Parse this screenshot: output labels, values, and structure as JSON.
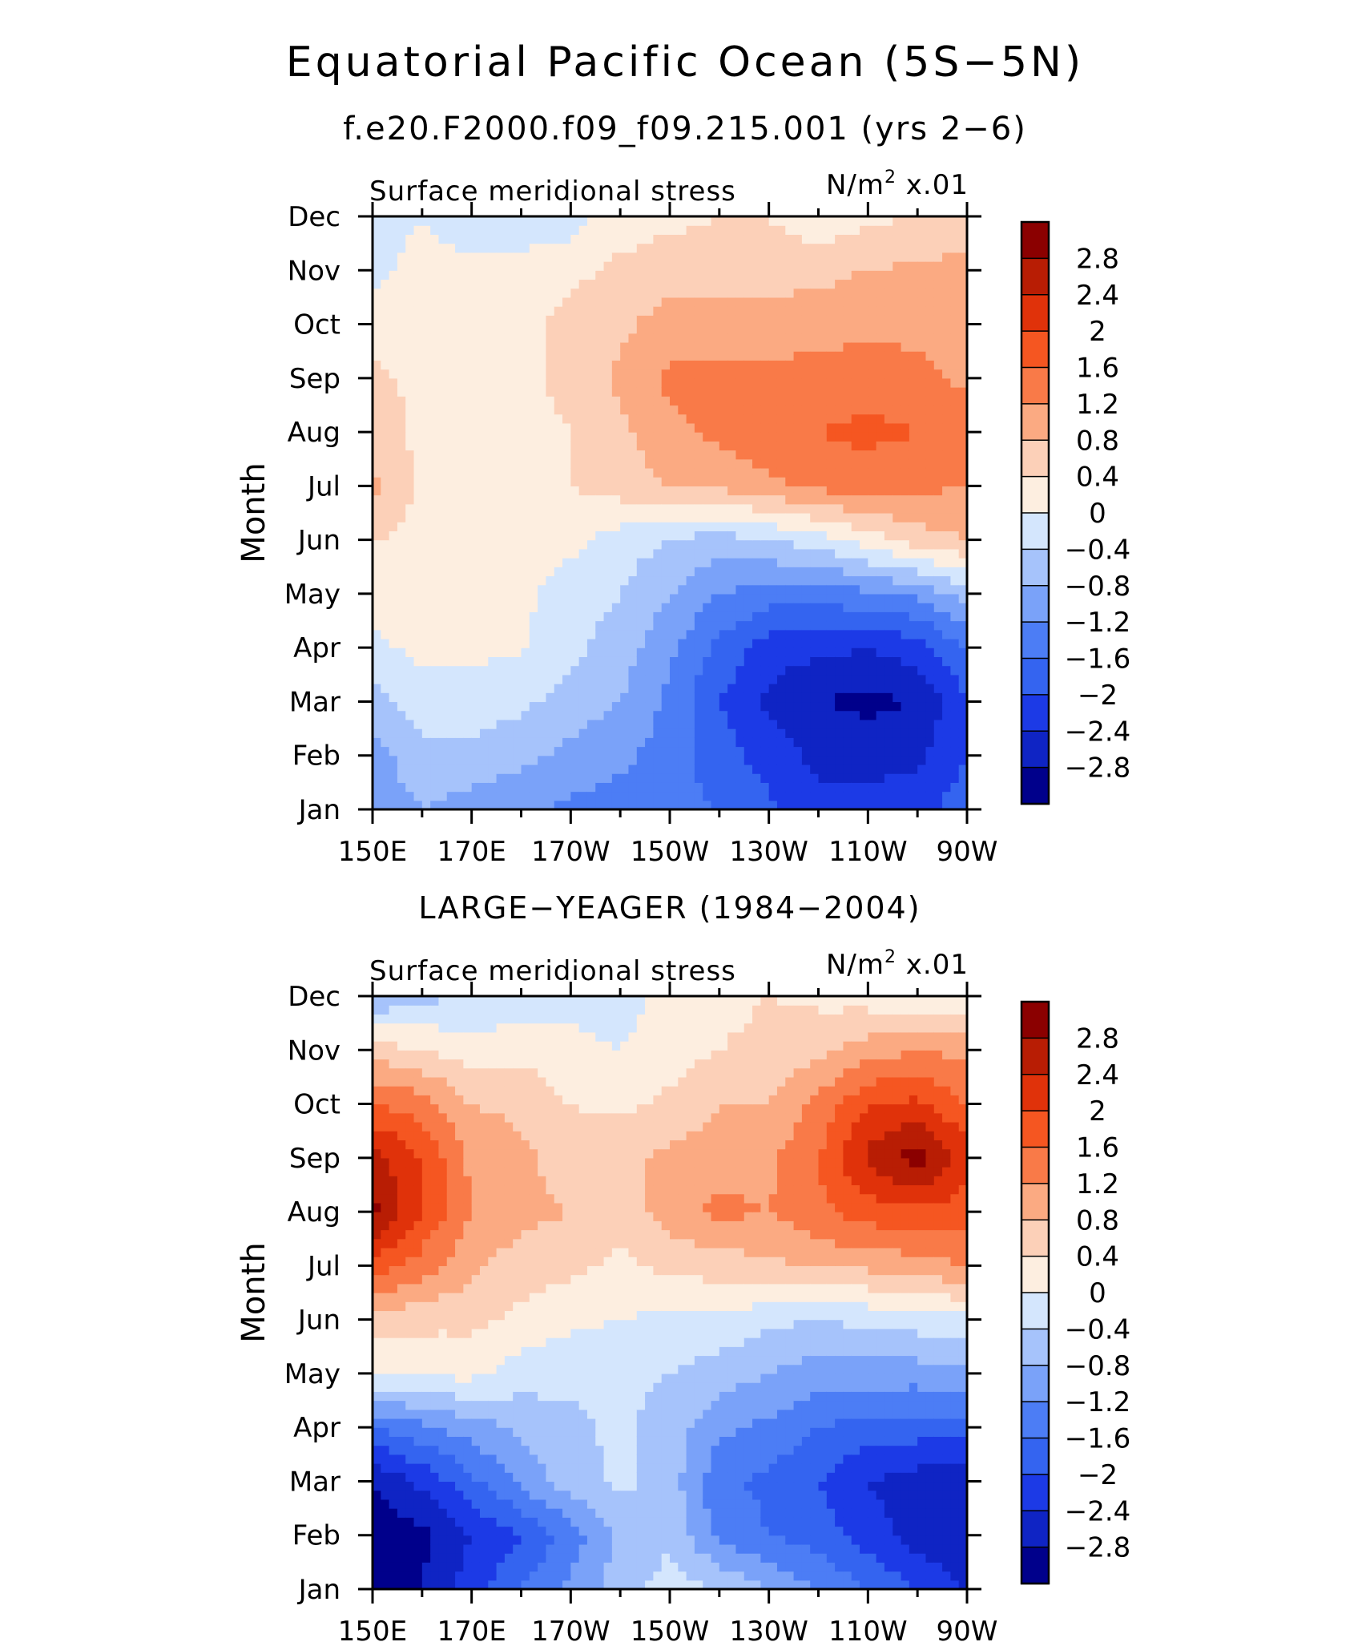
{
  "title": "Equatorial Pacific Ocean (5S−5N)",
  "subtitle": "f.e20.F2000.f09_f09.215.001 (yrs 2−6)",
  "palette": [
    "#00008b",
    "#0f24c4",
    "#1c3ae6",
    "#3464f0",
    "#4c7df5",
    "#7aa2f9",
    "#a6c3fb",
    "#d4e6fd",
    "#fdeee0",
    "#fcd0b8",
    "#fbaa82",
    "#f97a48",
    "#f55621",
    "#e0320a",
    "#b81d04",
    "#8b0000"
  ],
  "levels": [
    -2.8,
    -2.4,
    -2.0,
    -1.6,
    -1.2,
    -0.8,
    -0.4,
    0.0,
    0.4,
    0.8,
    1.2,
    1.6,
    2.0,
    2.4,
    2.8
  ],
  "legend_labels": [
    "2.8",
    "2.4",
    "2",
    "1.6",
    "1.2",
    "0.8",
    "0.4",
    "0",
    "−0.4",
    "−0.8",
    "−1.2",
    "−1.6",
    "−2",
    "−2.4",
    "−2.8"
  ],
  "chart_data": [
    {
      "type": "heatmap",
      "title": "",
      "left_label": "Surface meridional stress",
      "right_label": "N/m",
      "right_label_sup": "2",
      "right_label_tail": " x.01",
      "ylabel": "Month",
      "xlabel": "",
      "x_ticks": [
        "150E",
        "170E",
        "170W",
        "150W",
        "130W",
        "110W",
        "90W"
      ],
      "y_ticks": [
        "Jan",
        "Feb",
        "Mar",
        "Apr",
        "May",
        "Jun",
        "Jul",
        "Aug",
        "Sep",
        "Oct",
        "Nov",
        "Dec"
      ],
      "x_lon": [
        150,
        160,
        170,
        180,
        190,
        200,
        210,
        220,
        230,
        240,
        250,
        260,
        270
      ],
      "values": [
        [
          -1.1,
          -0.8,
          -1.0,
          -1.1,
          -1.3,
          -1.4,
          -1.5,
          -1.6,
          -1.9,
          -2.3,
          -2.2,
          -2.1,
          -1.8
        ],
        [
          -1.0,
          -0.5,
          -0.5,
          -0.7,
          -0.9,
          -1.1,
          -1.4,
          -1.8,
          -2.2,
          -2.5,
          -2.6,
          -2.5,
          -2.0
        ],
        [
          -0.6,
          -0.2,
          -0.2,
          -0.3,
          -0.6,
          -0.8,
          -1.3,
          -2.0,
          -2.5,
          -2.8,
          -2.9,
          -2.8,
          -2.0
        ],
        [
          -0.1,
          0.1,
          0.1,
          0.05,
          -0.3,
          -0.6,
          -1.1,
          -1.7,
          -2.2,
          -2.3,
          -2.4,
          -2.2,
          -1.6
        ],
        [
          0.2,
          0.2,
          0.2,
          0.1,
          -0.2,
          -0.4,
          -0.8,
          -1.2,
          -1.4,
          -1.4,
          -1.3,
          -1.1,
          -0.6
        ],
        [
          0.4,
          0.3,
          0.2,
          0.2,
          0.1,
          -0.2,
          -0.4,
          -0.6,
          -0.4,
          -0.2,
          0.2,
          0.6,
          0.8
        ],
        [
          0.9,
          0.3,
          0.2,
          0.3,
          0.4,
          0.6,
          0.8,
          0.9,
          1.1,
          1.3,
          1.4,
          1.3,
          1.2
        ],
        [
          0.6,
          0.3,
          0.2,
          0.3,
          0.4,
          0.7,
          1.1,
          1.3,
          1.5,
          1.6,
          1.7,
          1.6,
          1.5
        ],
        [
          0.5,
          0.3,
          0.2,
          0.3,
          0.5,
          0.9,
          1.3,
          1.3,
          1.3,
          1.4,
          1.4,
          1.3,
          1.1
        ],
        [
          0.2,
          0.2,
          0.2,
          0.3,
          0.5,
          0.7,
          1.0,
          1.0,
          1.0,
          1.0,
          1.1,
          1.1,
          1.0
        ],
        [
          -0.1,
          0.1,
          0.1,
          0.2,
          0.3,
          0.5,
          0.6,
          0.6,
          0.6,
          0.7,
          0.8,
          0.9,
          0.9
        ],
        [
          -0.1,
          0.0,
          -0.2,
          -0.3,
          -0.2,
          0.2,
          0.3,
          0.4,
          0.4,
          0.1,
          0.3,
          0.4,
          0.6
        ]
      ]
    },
    {
      "type": "heatmap",
      "title": "LARGE−YEAGER (1984−2004)",
      "left_label": "Surface meridional stress",
      "right_label": "N/m",
      "right_label_sup": "2",
      "right_label_tail": " x.01",
      "ylabel": "Month",
      "xlabel": "",
      "x_ticks": [
        "150E",
        "170E",
        "170W",
        "150W",
        "130W",
        "110W",
        "90W"
      ],
      "y_ticks": [
        "Jan",
        "Feb",
        "Mar",
        "Apr",
        "May",
        "Jun",
        "Jul",
        "Aug",
        "Sep",
        "Oct",
        "Nov",
        "Dec"
      ],
      "x_lon": [
        150,
        160,
        170,
        180,
        190,
        200,
        210,
        220,
        230,
        240,
        250,
        260,
        270
      ],
      "values": [
        [
          -3.0,
          -2.8,
          -2.2,
          -1.6,
          -1.1,
          -0.6,
          -0.2,
          -0.4,
          -0.8,
          -1.2,
          -1.6,
          -2.0,
          -2.4
        ],
        [
          -3.1,
          -2.9,
          -2.4,
          -2.0,
          -1.4,
          -0.7,
          -0.5,
          -1.3,
          -1.6,
          -1.8,
          -2.2,
          -2.6,
          -2.8
        ],
        [
          -2.8,
          -2.3,
          -1.7,
          -1.1,
          -0.6,
          -0.3,
          -0.6,
          -1.5,
          -1.7,
          -2.0,
          -2.4,
          -2.6,
          -2.7
        ],
        [
          -1.6,
          -1.3,
          -1.0,
          -0.7,
          -0.5,
          -0.3,
          -0.6,
          -1.1,
          -1.3,
          -1.6,
          -1.8,
          -1.8,
          -1.8
        ],
        [
          0.0,
          0.1,
          0.1,
          -0.2,
          -0.3,
          -0.3,
          -0.4,
          -0.6,
          -0.8,
          -1.0,
          -1.0,
          -1.0,
          -0.9
        ],
        [
          0.6,
          0.5,
          0.5,
          0.3,
          0.1,
          0.0,
          -0.1,
          -0.1,
          -0.3,
          -0.4,
          -0.3,
          -0.2,
          -0.1
        ],
        [
          1.9,
          1.4,
          0.9,
          0.6,
          0.5,
          0.3,
          0.5,
          0.6,
          0.7,
          0.9,
          0.9,
          1.0,
          1.2
        ],
        [
          2.9,
          2.0,
          1.2,
          0.9,
          0.8,
          0.6,
          1.0,
          1.3,
          1.2,
          1.5,
          1.8,
          1.9,
          1.8
        ],
        [
          2.6,
          2.0,
          1.1,
          0.9,
          0.6,
          0.7,
          0.9,
          1.0,
          1.1,
          1.6,
          2.5,
          3.0,
          2.2
        ],
        [
          1.6,
          1.4,
          0.8,
          0.7,
          0.4,
          0.3,
          0.5,
          0.8,
          0.8,
          1.3,
          2.0,
          2.1,
          1.6
        ],
        [
          0.6,
          0.4,
          0.2,
          0.3,
          0.1,
          0.0,
          0.2,
          0.4,
          0.5,
          0.7,
          1.0,
          1.2,
          1.1
        ],
        [
          -0.8,
          -0.5,
          -0.4,
          -0.3,
          -0.1,
          -0.2,
          0.2,
          0.3,
          0.4,
          0.3,
          0.2,
          0.0,
          0.1
        ]
      ]
    }
  ]
}
